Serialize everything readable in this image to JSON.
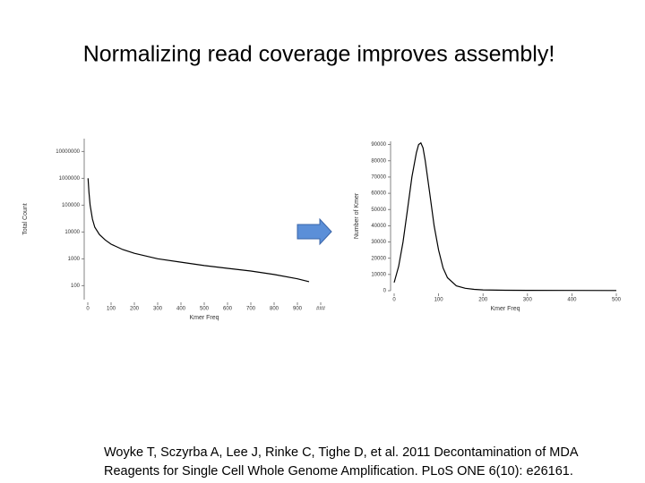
{
  "title": "Normalizing read coverage improves assembly!",
  "citation": [
    "Woyke T, Sczyrba A, Lee J, Rinke C, Tighe D, et al. 2011 Decontamination of MDA",
    "Reagents for Single Cell Whole Genome Amplification. PLoS ONE 6(10): e26161."
  ],
  "chart_data": [
    {
      "type": "line",
      "x_label": "Kmer Freq",
      "y_label": "Total Count",
      "log_y": true,
      "color": "#000000",
      "x": [
        1,
        5,
        10,
        20,
        30,
        50,
        75,
        100,
        150,
        200,
        300,
        400,
        500,
        600,
        700,
        800,
        900,
        950
      ],
      "values": [
        1000000,
        300000,
        100000,
        30000,
        15000,
        8000,
        5000,
        3500,
        2200,
        1600,
        1000,
        750,
        560,
        440,
        350,
        260,
        180,
        140
      ],
      "xlim": [
        0,
        1000
      ],
      "xticks": [
        0,
        100,
        200,
        300,
        400,
        500,
        600,
        700,
        800,
        900,
        {
          "value": 1000,
          "label": "###"
        }
      ],
      "ylim": [
        30,
        30000000
      ],
      "yticks": [
        100,
        1000,
        10000,
        100000,
        1000000,
        10000000
      ]
    },
    {
      "type": "line",
      "x_label": "Kmer Freq",
      "y_label": "Number of Kmer",
      "log_y": false,
      "color": "#000000",
      "x": [
        0,
        10,
        20,
        30,
        40,
        50,
        55,
        60,
        65,
        70,
        80,
        90,
        100,
        110,
        120,
        140,
        160,
        180,
        200,
        250,
        300,
        400,
        500
      ],
      "values": [
        5000,
        15000,
        30000,
        50000,
        70000,
        85000,
        90000,
        91000,
        88000,
        80000,
        60000,
        40000,
        25000,
        14000,
        8000,
        3000,
        1500,
        800,
        500,
        300,
        200,
        150,
        100
      ],
      "xlim": [
        0,
        500
      ],
      "xticks": [
        0,
        100,
        200,
        300,
        400,
        500
      ],
      "ylim": [
        0,
        92000
      ],
      "yticks": [
        0,
        10000,
        20000,
        30000,
        40000,
        50000,
        60000,
        70000,
        80000,
        90000
      ]
    }
  ]
}
